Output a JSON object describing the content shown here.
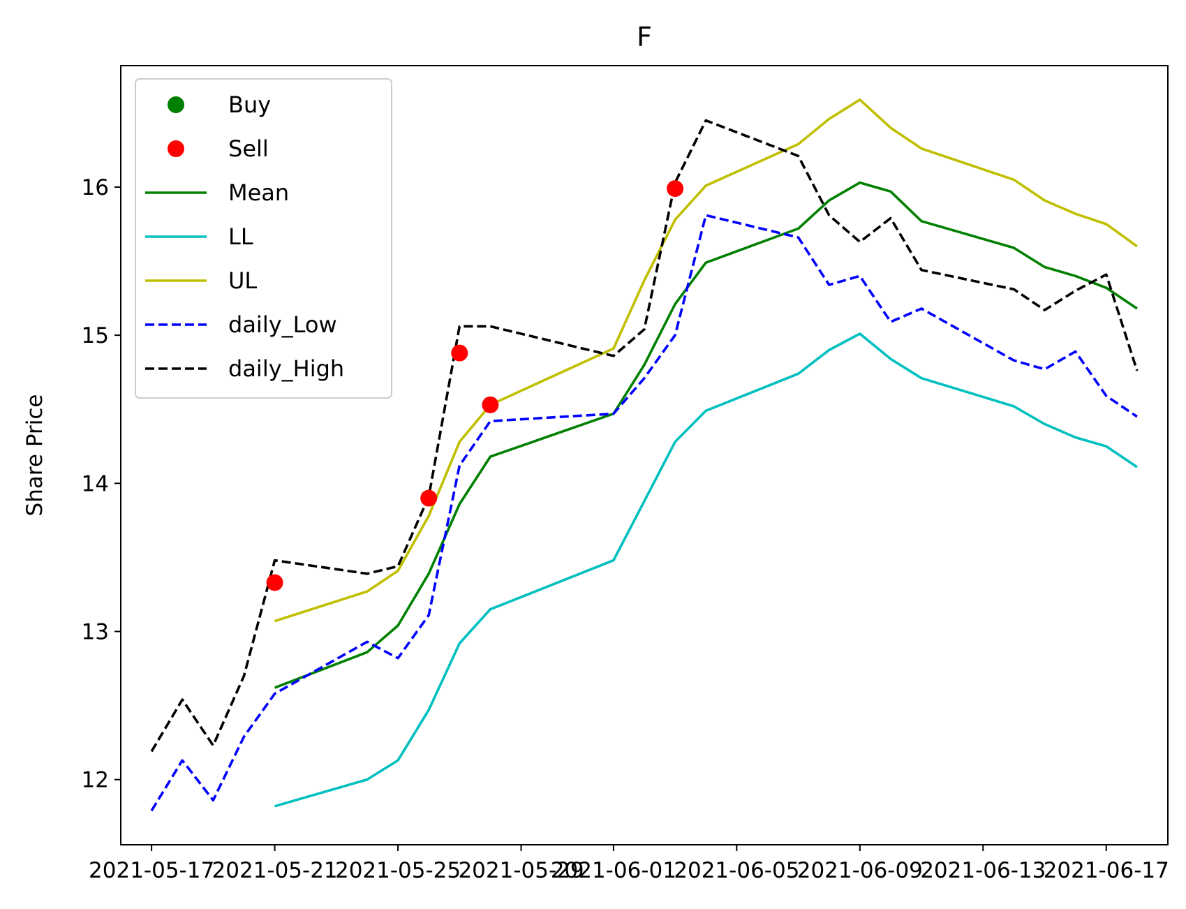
{
  "chart_data": {
    "type": "line",
    "title": "F",
    "xlabel": "",
    "ylabel": "Share Price",
    "x_tick_labels": [
      "2021-05-17",
      "2021-05-21",
      "2021-05-25",
      "2021-05-29",
      "2021-06-01",
      "2021-06-05",
      "2021-06-09",
      "2021-06-13",
      "2021-06-17"
    ],
    "x_tick_dates": [
      "2021-05-17",
      "2021-05-21",
      "2021-05-25",
      "2021-05-29",
      "2021-06-01",
      "2021-06-05",
      "2021-06-09",
      "2021-06-13",
      "2021-06-17"
    ],
    "xlim": [
      "2021-05-16",
      "2021-06-19"
    ],
    "ylim": [
      11.56,
      16.82
    ],
    "y_ticks": [
      12,
      13,
      14,
      15,
      16
    ],
    "grid": false,
    "legend_position": "upper-left",
    "series": [
      {
        "name": "Buy",
        "kind": "marker",
        "color": "#008000",
        "points": []
      },
      {
        "name": "Sell",
        "kind": "marker",
        "color": "#ff0000",
        "points": [
          {
            "x": "2021-05-21",
            "y": 13.33
          },
          {
            "x": "2021-05-26",
            "y": 13.9
          },
          {
            "x": "2021-05-27",
            "y": 14.88
          },
          {
            "x": "2021-05-28",
            "y": 14.53
          },
          {
            "x": "2021-06-03",
            "y": 15.99
          }
        ]
      },
      {
        "name": "Mean",
        "kind": "line",
        "dash": "solid",
        "color": "#008000",
        "points": [
          {
            "x": "2021-05-21",
            "y": 12.62
          },
          {
            "x": "2021-05-24",
            "y": 12.86
          },
          {
            "x": "2021-05-25",
            "y": 13.04
          },
          {
            "x": "2021-05-26",
            "y": 13.39
          },
          {
            "x": "2021-05-27",
            "y": 13.86
          },
          {
            "x": "2021-05-28",
            "y": 14.18
          },
          {
            "x": "2021-06-01",
            "y": 14.47
          },
          {
            "x": "2021-06-02",
            "y": 14.8
          },
          {
            "x": "2021-06-03",
            "y": 15.21
          },
          {
            "x": "2021-06-04",
            "y": 15.49
          },
          {
            "x": "2021-06-07",
            "y": 15.72
          },
          {
            "x": "2021-06-08",
            "y": 15.91
          },
          {
            "x": "2021-06-09",
            "y": 16.03
          },
          {
            "x": "2021-06-10",
            "y": 15.97
          },
          {
            "x": "2021-06-11",
            "y": 15.77
          },
          {
            "x": "2021-06-14",
            "y": 15.59
          },
          {
            "x": "2021-06-15",
            "y": 15.46
          },
          {
            "x": "2021-06-16",
            "y": 15.4
          },
          {
            "x": "2021-06-17",
            "y": 15.32
          },
          {
            "x": "2021-06-18",
            "y": 15.18
          }
        ]
      },
      {
        "name": "LL",
        "kind": "line",
        "dash": "solid",
        "color": "#00bfbf",
        "points": [
          {
            "x": "2021-05-21",
            "y": 11.82
          },
          {
            "x": "2021-05-24",
            "y": 12.0
          },
          {
            "x": "2021-05-25",
            "y": 12.13
          },
          {
            "x": "2021-05-26",
            "y": 12.47
          },
          {
            "x": "2021-05-27",
            "y": 12.92
          },
          {
            "x": "2021-05-28",
            "y": 13.15
          },
          {
            "x": "2021-06-01",
            "y": 13.48
          },
          {
            "x": "2021-06-02",
            "y": 13.88
          },
          {
            "x": "2021-06-03",
            "y": 14.28
          },
          {
            "x": "2021-06-04",
            "y": 14.49
          },
          {
            "x": "2021-06-07",
            "y": 14.74
          },
          {
            "x": "2021-06-08",
            "y": 14.9
          },
          {
            "x": "2021-06-09",
            "y": 15.01
          },
          {
            "x": "2021-06-10",
            "y": 14.84
          },
          {
            "x": "2021-06-11",
            "y": 14.71
          },
          {
            "x": "2021-06-14",
            "y": 14.52
          },
          {
            "x": "2021-06-15",
            "y": 14.4
          },
          {
            "x": "2021-06-16",
            "y": 14.31
          },
          {
            "x": "2021-06-17",
            "y": 14.25
          },
          {
            "x": "2021-06-18",
            "y": 14.11
          }
        ]
      },
      {
        "name": "UL",
        "kind": "line",
        "dash": "solid",
        "color": "#bfbf00",
        "points": [
          {
            "x": "2021-05-21",
            "y": 13.07
          },
          {
            "x": "2021-05-24",
            "y": 13.27
          },
          {
            "x": "2021-05-25",
            "y": 13.41
          },
          {
            "x": "2021-05-26",
            "y": 13.78
          },
          {
            "x": "2021-05-27",
            "y": 14.28
          },
          {
            "x": "2021-05-28",
            "y": 14.53
          },
          {
            "x": "2021-06-01",
            "y": 14.91
          },
          {
            "x": "2021-06-02",
            "y": 15.37
          },
          {
            "x": "2021-06-03",
            "y": 15.78
          },
          {
            "x": "2021-06-04",
            "y": 16.01
          },
          {
            "x": "2021-06-07",
            "y": 16.29
          },
          {
            "x": "2021-06-08",
            "y": 16.46
          },
          {
            "x": "2021-06-09",
            "y": 16.59
          },
          {
            "x": "2021-06-10",
            "y": 16.4
          },
          {
            "x": "2021-06-11",
            "y": 16.26
          },
          {
            "x": "2021-06-14",
            "y": 16.05
          },
          {
            "x": "2021-06-15",
            "y": 15.91
          },
          {
            "x": "2021-06-16",
            "y": 15.82
          },
          {
            "x": "2021-06-17",
            "y": 15.75
          },
          {
            "x": "2021-06-18",
            "y": 15.6
          }
        ]
      },
      {
        "name": "daily_Low",
        "kind": "line",
        "dash": "dashed",
        "color": "#0000ff",
        "points": [
          {
            "x": "2021-05-17",
            "y": 11.79
          },
          {
            "x": "2021-05-18",
            "y": 12.13
          },
          {
            "x": "2021-05-19",
            "y": 11.86
          },
          {
            "x": "2021-05-20",
            "y": 12.29
          },
          {
            "x": "2021-05-21",
            "y": 12.58
          },
          {
            "x": "2021-05-24",
            "y": 12.93
          },
          {
            "x": "2021-05-25",
            "y": 12.82
          },
          {
            "x": "2021-05-26",
            "y": 13.11
          },
          {
            "x": "2021-05-27",
            "y": 14.12
          },
          {
            "x": "2021-05-28",
            "y": 14.42
          },
          {
            "x": "2021-06-01",
            "y": 14.47
          },
          {
            "x": "2021-06-02",
            "y": 14.71
          },
          {
            "x": "2021-06-03",
            "y": 15.0
          },
          {
            "x": "2021-06-04",
            "y": 15.81
          },
          {
            "x": "2021-06-07",
            "y": 15.66
          },
          {
            "x": "2021-06-08",
            "y": 15.34
          },
          {
            "x": "2021-06-09",
            "y": 15.4
          },
          {
            "x": "2021-06-10",
            "y": 15.09
          },
          {
            "x": "2021-06-11",
            "y": 15.18
          },
          {
            "x": "2021-06-14",
            "y": 14.83
          },
          {
            "x": "2021-06-15",
            "y": 14.77
          },
          {
            "x": "2021-06-16",
            "y": 14.89
          },
          {
            "x": "2021-06-17",
            "y": 14.59
          },
          {
            "x": "2021-06-18",
            "y": 14.45
          }
        ]
      },
      {
        "name": "daily_High",
        "kind": "line",
        "dash": "dashed",
        "color": "#000000",
        "points": [
          {
            "x": "2021-05-17",
            "y": 12.19
          },
          {
            "x": "2021-05-18",
            "y": 12.54
          },
          {
            "x": "2021-05-19",
            "y": 12.23
          },
          {
            "x": "2021-05-20",
            "y": 12.7
          },
          {
            "x": "2021-05-21",
            "y": 13.48
          },
          {
            "x": "2021-05-24",
            "y": 13.39
          },
          {
            "x": "2021-05-25",
            "y": 13.44
          },
          {
            "x": "2021-05-26",
            "y": 13.91
          },
          {
            "x": "2021-05-27",
            "y": 15.06
          },
          {
            "x": "2021-05-28",
            "y": 15.06
          },
          {
            "x": "2021-06-01",
            "y": 14.86
          },
          {
            "x": "2021-06-02",
            "y": 15.04
          },
          {
            "x": "2021-06-03",
            "y": 16.03
          },
          {
            "x": "2021-06-04",
            "y": 16.45
          },
          {
            "x": "2021-06-07",
            "y": 16.21
          },
          {
            "x": "2021-06-08",
            "y": 15.81
          },
          {
            "x": "2021-06-09",
            "y": 15.63
          },
          {
            "x": "2021-06-10",
            "y": 15.79
          },
          {
            "x": "2021-06-11",
            "y": 15.44
          },
          {
            "x": "2021-06-14",
            "y": 15.31
          },
          {
            "x": "2021-06-15",
            "y": 15.17
          },
          {
            "x": "2021-06-16",
            "y": 15.3
          },
          {
            "x": "2021-06-17",
            "y": 15.41
          },
          {
            "x": "2021-06-18",
            "y": 14.76
          }
        ]
      }
    ]
  }
}
